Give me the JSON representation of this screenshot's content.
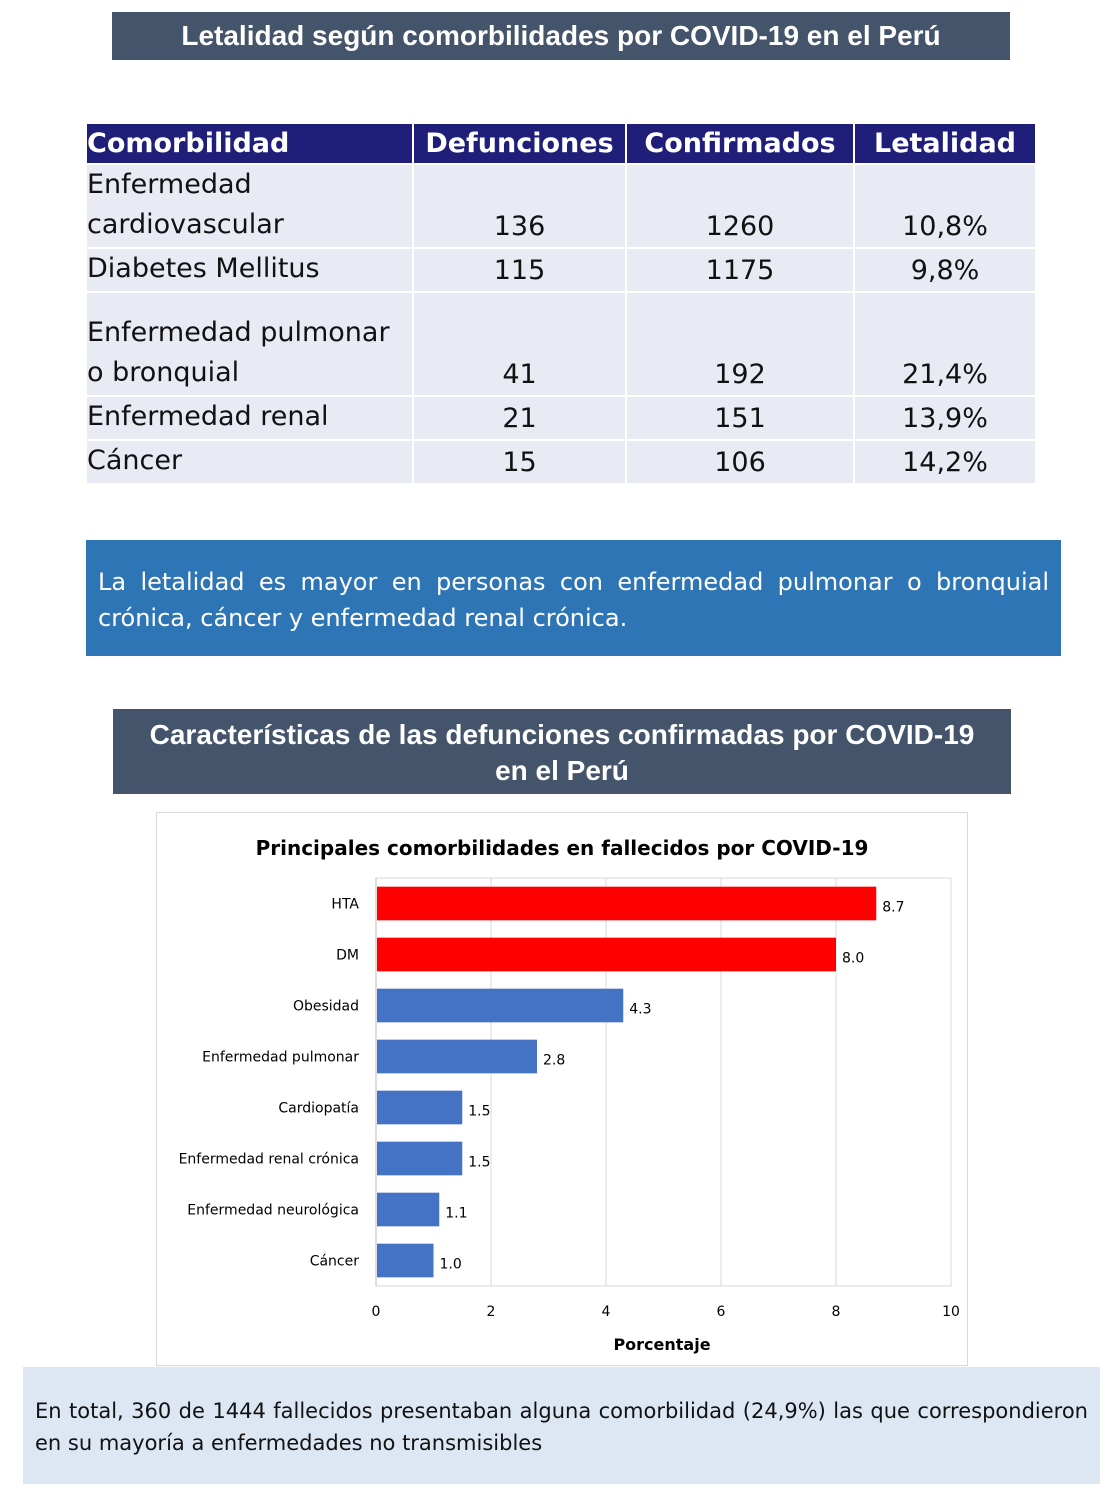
{
  "section1": {
    "title": "Letalidad según comorbilidades por COVID-19 en el Perú",
    "table": {
      "headers": [
        "Comorbilidad",
        "Defunciones",
        "Confirmados",
        "Letalidad"
      ],
      "rows": [
        {
          "name_lines": [
            "Enfermedad",
            "cardiovascular"
          ],
          "defunciones": "136",
          "confirmados": "1260",
          "letalidad": "10,8%"
        },
        {
          "name_lines": [
            "Diabetes Mellitus"
          ],
          "defunciones": "115",
          "confirmados": "1175",
          "letalidad": "9,8%"
        },
        {
          "name_lines": [
            "Enfermedad pulmonar",
            "o bronquial"
          ],
          "defunciones": "41",
          "confirmados": "192",
          "letalidad": "21,4%"
        },
        {
          "name_lines": [
            "Enfermedad renal"
          ],
          "defunciones": "21",
          "confirmados": "151",
          "letalidad": "13,9%"
        },
        {
          "name_lines": [
            "Cáncer"
          ],
          "defunciones": "15",
          "confirmados": "106",
          "letalidad": "14,2%"
        }
      ]
    },
    "note": "La letalidad es mayor en personas con enfermedad pulmonar o bronquial crónica, cáncer y enfermedad renal crónica."
  },
  "section2": {
    "title": "Características de las defunciones confirmadas por COVID-19 en el Perú",
    "note": "En total, 360 de 1444 fallecidos presentaban alguna comorbilidad (24,9%) las que correspondieron en su mayoría a enfermedades no transmisibles"
  },
  "chart_data": {
    "type": "bar",
    "orientation": "horizontal",
    "title": "Principales comorbilidades en fallecidos por COVID-19",
    "xlabel": "Porcentaje",
    "ylabel": "",
    "categories": [
      "HTA",
      "DM",
      "Obesidad",
      "Enfermedad pulmonar",
      "Cardiopatía",
      "Enfermedad renal crónica",
      "Enfermedad neurológica",
      "Cáncer"
    ],
    "values": [
      8.7,
      8.0,
      4.3,
      2.8,
      1.5,
      1.5,
      1.1,
      1.0
    ],
    "value_labels": [
      "8.7",
      "8.0",
      "4.3",
      "2.8",
      "1.5",
      "1.5",
      "1.1",
      "1.0"
    ],
    "bar_colors": [
      "#ff0000",
      "#ff0000",
      "#4472c4",
      "#4472c4",
      "#4472c4",
      "#4472c4",
      "#4472c4",
      "#4472c4"
    ],
    "xlim": [
      0,
      10
    ],
    "xticks": [
      "0",
      "2",
      "4",
      "6",
      "8",
      "10"
    ],
    "grid": true
  }
}
